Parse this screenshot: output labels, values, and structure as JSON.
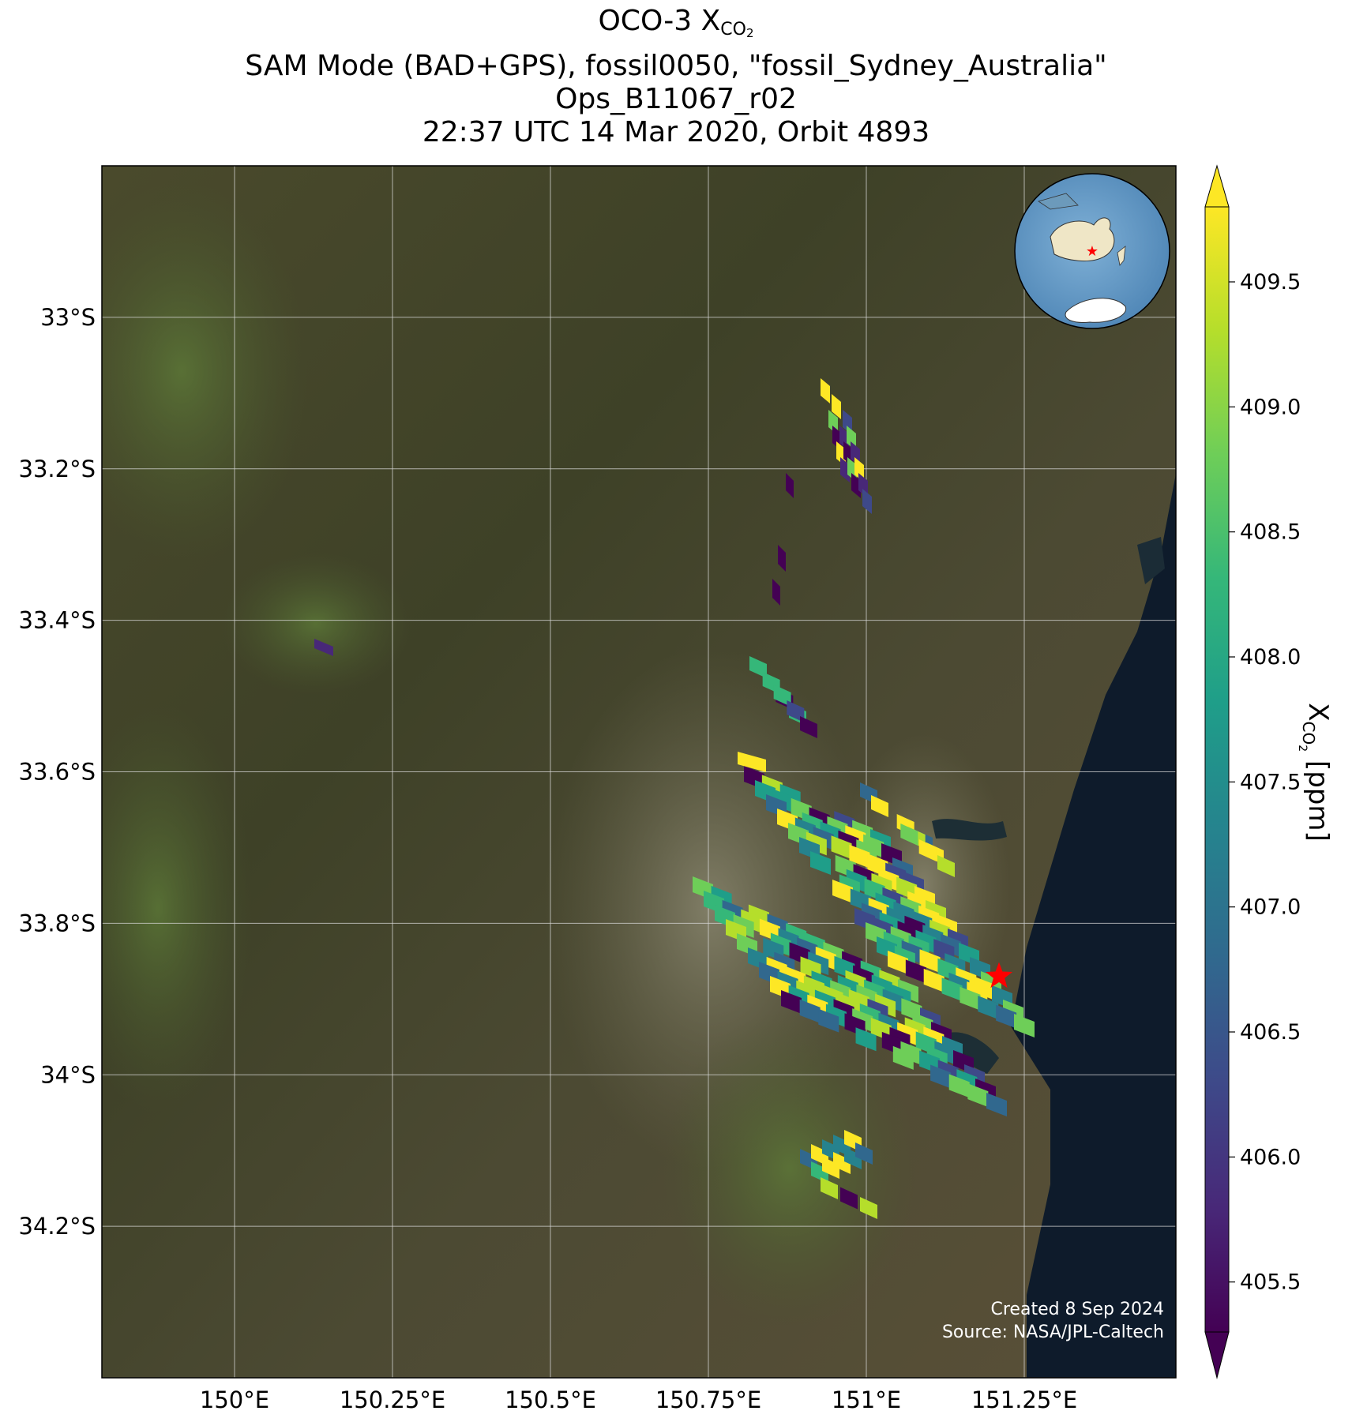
{
  "title": {
    "line1_prefix": "OCO-3 X",
    "line1_sub": "CO",
    "line1_sub2": "2",
    "line2": "SAM Mode (BAD+GPS), fossil0050, \"fossil_Sydney_Australia\"",
    "line3": "Ops_B11067_r02",
    "line4": "22:37 UTC 14 Mar 2020, Orbit 4893"
  },
  "map": {
    "lon_range": [
      149.79,
      151.49
    ],
    "lat_range": [
      -34.4,
      -32.8
    ],
    "lon_ticks": [
      {
        "value": 150.0,
        "label": "150°E"
      },
      {
        "value": 150.25,
        "label": "150.25°E"
      },
      {
        "value": 150.5,
        "label": "150.5°E"
      },
      {
        "value": 150.75,
        "label": "150.75°E"
      },
      {
        "value": 151.0,
        "label": "151°E"
      },
      {
        "value": 151.25,
        "label": "151.25°E"
      }
    ],
    "lat_ticks": [
      {
        "value": -33.0,
        "label": "33°S"
      },
      {
        "value": -33.2,
        "label": "33.2°S"
      },
      {
        "value": -33.4,
        "label": "33.4°S"
      },
      {
        "value": -33.6,
        "label": "33.6°S"
      },
      {
        "value": -33.8,
        "label": "33.8°S"
      },
      {
        "value": -34.0,
        "label": "34°S"
      },
      {
        "value": -34.2,
        "label": "34.2°S"
      }
    ],
    "gridlines": true,
    "target": {
      "name": "fossil_Sydney_Australia",
      "lon": 151.21,
      "lat": -33.87,
      "color": "#ff0000"
    },
    "inset_globe": "Australia with red star marker",
    "credit_line1": "Created 8 Sep 2024",
    "credit_line2": "Source: NASA/JPL-Caltech"
  },
  "colorbar": {
    "label_prefix": "X",
    "label_sub": "CO",
    "label_sub2": "2",
    "label_suffix": " [ppm]",
    "min": 405.3,
    "max": 409.8,
    "extend": "both",
    "colormap": "viridis",
    "ticks": [
      {
        "value": 405.5,
        "label": "405.5"
      },
      {
        "value": 406.0,
        "label": "406.0"
      },
      {
        "value": 406.5,
        "label": "406.5"
      },
      {
        "value": 407.0,
        "label": "407.0"
      },
      {
        "value": 407.5,
        "label": "407.5"
      },
      {
        "value": 408.0,
        "label": "408.0"
      },
      {
        "value": 408.5,
        "label": "408.5"
      },
      {
        "value": 409.0,
        "label": "409.0"
      },
      {
        "value": 409.5,
        "label": "409.5"
      }
    ]
  }
}
